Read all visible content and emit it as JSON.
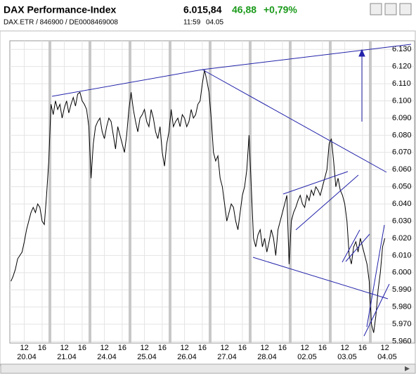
{
  "header": {
    "title": "DAX Performance-Index",
    "price": "6.015,84",
    "change": "46,88",
    "change_pct": "+0,79%",
    "symbol": "DAX.ETR / 846900 / DE0008469008",
    "time": "11:59",
    "date": "04.05"
  },
  "chart_data": {
    "type": "line",
    "color": "#000000",
    "grid": true,
    "ylim": [
      5.959,
      6.135
    ],
    "yticks": [
      {
        "value": 5.96,
        "label": "5.960"
      },
      {
        "value": 5.97,
        "label": "5.970"
      },
      {
        "value": 5.98,
        "label": "5.980"
      },
      {
        "value": 5.99,
        "label": "5.990"
      },
      {
        "value": 6.0,
        "label": "6.000"
      },
      {
        "value": 6.01,
        "label": "6.010"
      },
      {
        "value": 6.02,
        "label": "6.020"
      },
      {
        "value": 6.03,
        "label": "6.030"
      },
      {
        "value": 6.04,
        "label": "6.040"
      },
      {
        "value": 6.05,
        "label": "6.050"
      },
      {
        "value": 6.06,
        "label": "6.060"
      },
      {
        "value": 6.07,
        "label": "6.070"
      },
      {
        "value": 6.08,
        "label": "6.080"
      },
      {
        "value": 6.09,
        "label": "6.090"
      },
      {
        "value": 6.1,
        "label": "6.100"
      },
      {
        "value": 6.11,
        "label": "6.110"
      },
      {
        "value": 6.12,
        "label": "6.120"
      },
      {
        "value": 6.13,
        "label": "6.130"
      }
    ],
    "days": [
      {
        "label": "20.04",
        "categories": [
          null,
          null,
          null,
          null,
          null,
          null,
          "12",
          null,
          null,
          null,
          null,
          null,
          null,
          null,
          "16",
          null,
          null,
          null
        ],
        "values": [
          5.995,
          5.998,
          6.002,
          6.008,
          6.01,
          6.012,
          6.018,
          6.025,
          6.03,
          6.035,
          6.038,
          6.035,
          6.04,
          6.038,
          6.03,
          6.028,
          6.045,
          6.065
        ]
      },
      {
        "label": "21.04",
        "categories": [
          null,
          null,
          null,
          null,
          null,
          null,
          "12",
          null,
          null,
          null,
          null,
          null,
          null,
          null,
          "16",
          null,
          null,
          null
        ],
        "values": [
          6.098,
          6.092,
          6.1,
          6.095,
          6.098,
          6.09,
          6.096,
          6.1,
          6.093,
          6.098,
          6.102,
          6.097,
          6.104,
          6.105,
          6.1,
          6.098,
          6.095,
          6.085
        ]
      },
      {
        "label": "24.04",
        "categories": [
          null,
          null,
          null,
          null,
          null,
          null,
          "12",
          null,
          null,
          null,
          null,
          null,
          null,
          null,
          "16",
          null,
          null,
          null
        ],
        "values": [
          6.055,
          6.075,
          6.085,
          6.088,
          6.09,
          6.082,
          6.078,
          6.085,
          6.09,
          6.088,
          6.08,
          6.072,
          6.085,
          6.08,
          6.075,
          6.07,
          6.08,
          6.095
        ]
      },
      {
        "label": "25.04",
        "categories": [
          null,
          null,
          null,
          null,
          null,
          null,
          "12",
          null,
          null,
          null,
          null,
          null,
          null,
          null,
          "16",
          null,
          null,
          null
        ],
        "values": [
          6.105,
          6.095,
          6.088,
          6.082,
          6.09,
          6.092,
          6.095,
          6.088,
          6.085,
          6.095,
          6.09,
          6.082,
          6.078,
          6.085,
          6.07,
          6.062,
          6.075,
          6.082
        ]
      },
      {
        "label": "26.04",
        "categories": [
          null,
          null,
          null,
          null,
          null,
          null,
          "12",
          null,
          null,
          null,
          null,
          null,
          null,
          null,
          "16",
          null,
          null,
          null
        ],
        "values": [
          6.095,
          6.085,
          6.088,
          6.09,
          6.085,
          6.092,
          6.09,
          6.085,
          6.088,
          6.095,
          6.09,
          6.092,
          6.098,
          6.1,
          6.11,
          6.118,
          6.112,
          6.105
        ]
      },
      {
        "label": "27.04",
        "categories": [
          null,
          null,
          null,
          null,
          null,
          null,
          "12",
          null,
          null,
          null,
          null,
          null,
          null,
          null,
          "16",
          null,
          null,
          null
        ],
        "values": [
          6.09,
          6.07,
          6.065,
          6.068,
          6.055,
          6.05,
          6.04,
          6.03,
          6.035,
          6.04,
          6.038,
          6.03,
          6.025,
          6.035,
          6.045,
          6.05,
          6.06,
          6.08
        ]
      },
      {
        "label": "28.04",
        "categories": [
          null,
          null,
          null,
          null,
          null,
          null,
          "12",
          null,
          null,
          null,
          null,
          null,
          null,
          null,
          "16",
          null,
          null,
          null
        ],
        "values": [
          6.05,
          6.02,
          6.015,
          6.022,
          6.025,
          6.015,
          6.02,
          6.012,
          6.018,
          6.025,
          6.02,
          6.01,
          6.025,
          6.03,
          6.035,
          6.04,
          6.045,
          6.005
        ]
      },
      {
        "label": "02.05",
        "categories": [
          null,
          null,
          null,
          null,
          null,
          null,
          "12",
          null,
          null,
          null,
          null,
          null,
          null,
          null,
          "16",
          null,
          null,
          null
        ],
        "values": [
          6.03,
          6.035,
          6.038,
          6.042,
          6.045,
          6.04,
          6.038,
          6.045,
          6.042,
          6.048,
          6.045,
          6.05,
          6.048,
          6.045,
          6.05,
          6.055,
          6.06,
          6.075
        ]
      },
      {
        "label": "03.05",
        "categories": [
          null,
          null,
          null,
          null,
          null,
          null,
          "12",
          null,
          null,
          null,
          null,
          null,
          null,
          null,
          "16",
          null,
          null,
          null
        ],
        "values": [
          6.078,
          6.065,
          6.05,
          6.055,
          6.048,
          6.045,
          6.04,
          6.03,
          6.01,
          6.005,
          6.015,
          6.018,
          6.012,
          6.02,
          6.015,
          6.01,
          6.005,
          5.995
        ]
      },
      {
        "label": "04.05",
        "categories": [
          null,
          null,
          null,
          null,
          null,
          null,
          "12"
        ],
        "values": [
          5.97,
          5.965,
          5.975,
          5.99,
          6.0,
          6.015,
          6.02
        ]
      }
    ]
  }
}
